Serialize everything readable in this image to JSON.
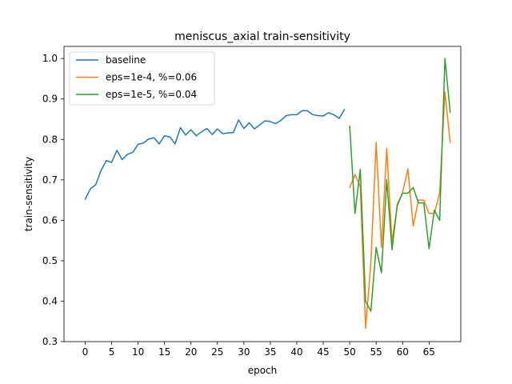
{
  "chart_data": {
    "type": "line",
    "title": "meniscus_axial train-sensitivity",
    "xlabel": "epoch",
    "ylabel": "train-sensitivity",
    "xlim": [
      -4,
      71
    ],
    "ylim": [
      0.3,
      1.03
    ],
    "xticks": [
      0,
      5,
      10,
      15,
      20,
      25,
      30,
      35,
      40,
      45,
      50,
      55,
      60,
      65
    ],
    "yticks": [
      0.3,
      0.4,
      0.5,
      0.6,
      0.7,
      0.8,
      0.9,
      1.0
    ],
    "ytick_labels": [
      "0.3",
      "0.4",
      "0.5",
      "0.6",
      "0.7",
      "0.8",
      "0.9",
      "1.0"
    ],
    "grid": false,
    "legend_position": "top-left",
    "series": [
      {
        "name": "baseline",
        "color": "#1f77b4",
        "x": [
          0,
          1,
          2,
          3,
          4,
          5,
          6,
          7,
          8,
          9,
          10,
          11,
          12,
          13,
          14,
          15,
          16,
          17,
          18,
          19,
          20,
          21,
          22,
          23,
          24,
          25,
          26,
          27,
          28,
          29,
          30,
          31,
          32,
          33,
          34,
          35,
          36,
          37,
          38,
          39,
          40,
          41,
          42,
          43,
          44,
          45,
          46,
          47,
          48,
          49
        ],
        "y": [
          0.652,
          0.678,
          0.688,
          0.723,
          0.748,
          0.743,
          0.773,
          0.75,
          0.763,
          0.768,
          0.788,
          0.791,
          0.801,
          0.804,
          0.789,
          0.809,
          0.806,
          0.789,
          0.829,
          0.811,
          0.824,
          0.809,
          0.819,
          0.827,
          0.812,
          0.826,
          0.814,
          0.816,
          0.817,
          0.848,
          0.827,
          0.841,
          0.826,
          0.836,
          0.846,
          0.844,
          0.839,
          0.847,
          0.859,
          0.861,
          0.861,
          0.871,
          0.871,
          0.861,
          0.859,
          0.858,
          0.866,
          0.861,
          0.852,
          0.874
        ]
      },
      {
        "name": "eps=1e-4, %=0.06",
        "color": "#ff7f0e",
        "x": [
          50,
          51,
          52,
          53,
          54,
          55,
          56,
          57,
          58,
          59,
          60,
          61,
          62,
          63,
          64,
          65,
          66,
          67,
          68,
          69
        ],
        "y": [
          0.681,
          0.713,
          0.684,
          0.333,
          0.494,
          0.792,
          0.533,
          0.778,
          0.547,
          0.635,
          0.669,
          0.727,
          0.586,
          0.65,
          0.65,
          0.617,
          0.617,
          0.667,
          0.917,
          0.792
        ]
      },
      {
        "name": "eps=1e-5, %=0.04",
        "color": "#2ca02c",
        "x": [
          50,
          51,
          52,
          53,
          54,
          55,
          56,
          57,
          58,
          59,
          60,
          61,
          62,
          63,
          64,
          65,
          66,
          67,
          68,
          69
        ],
        "y": [
          0.833,
          0.617,
          0.726,
          0.4,
          0.375,
          0.533,
          0.47,
          0.7,
          0.527,
          0.64,
          0.667,
          0.667,
          0.681,
          0.643,
          0.643,
          0.53,
          0.625,
          0.6,
          1.0,
          0.867
        ]
      }
    ]
  }
}
